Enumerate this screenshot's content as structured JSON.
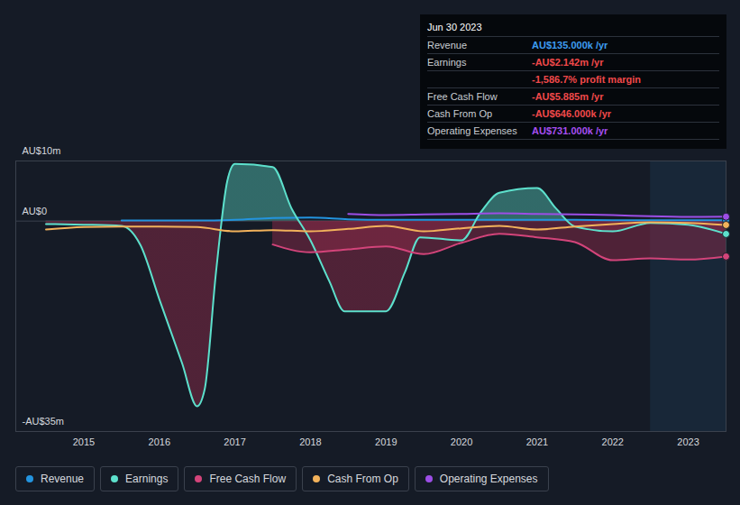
{
  "chart_data": {
    "type": "line",
    "xlim": [
      2014.1,
      2023.5
    ],
    "xticks": [
      2015,
      2016,
      2017,
      2018,
      2019,
      2020,
      2021,
      2022,
      2023
    ],
    "ylim": [
      -35,
      10
    ],
    "yticks": [
      {
        "value": 10,
        "label": "AU$10m"
      },
      {
        "value": 0,
        "label": "AU$0"
      },
      {
        "value": -35,
        "label": "-AU$35m"
      }
    ],
    "grid": true,
    "legend": "bottom",
    "shaded_region": [
      2022.5,
      2023.5
    ],
    "series": [
      {
        "name": "Revenue",
        "color": "#2394df",
        "type": "line",
        "marker": "end",
        "x": [
          2015.5,
          2016,
          2016.5,
          2017,
          2017.5,
          2018,
          2018.5,
          2019,
          2019.5,
          2020,
          2020.5,
          2021,
          2021.5,
          2022,
          2022.5,
          2023,
          2023.5
        ],
        "values": [
          0.1,
          0.1,
          0.1,
          0.2,
          0.5,
          0.6,
          0.3,
          0.2,
          0.2,
          0.2,
          0.2,
          0.2,
          0.2,
          0.15,
          0.14,
          0.13,
          0.135
        ]
      },
      {
        "name": "Earnings",
        "color": "#5de0cc",
        "type": "area",
        "marker": "end",
        "x": [
          2014.5,
          2015,
          2015.5,
          2015.75,
          2016,
          2016.3,
          2016.5,
          2016.6,
          2016.75,
          2016.9,
          2017,
          2017.5,
          2017.75,
          2018,
          2018.25,
          2018.45,
          2019,
          2019.25,
          2019.45,
          2020,
          2020.25,
          2020.5,
          2021,
          2021.25,
          2021.5,
          2022,
          2022.5,
          2023,
          2023.5
        ],
        "values": [
          -0.5,
          -0.6,
          -0.8,
          -4,
          -13,
          -23.6,
          -30.8,
          -28,
          -8.5,
          6.7,
          9.5,
          9,
          2.1,
          -3.2,
          -10,
          -15,
          -15,
          -8.5,
          -2.7,
          -3.2,
          1.4,
          4.7,
          5.5,
          2.1,
          -0.9,
          -1.7,
          -0.3,
          -0.6,
          -2.142
        ]
      },
      {
        "name": "Free Cash Flow",
        "color": "#d3447a",
        "type": "area",
        "marker": "end",
        "x": [
          2017.5,
          2018,
          2018.5,
          2019,
          2019.5,
          2020,
          2020.5,
          2021,
          2021.5,
          2022,
          2022.5,
          2023,
          2023.5
        ],
        "values": [
          -3.9,
          -5.2,
          -4.7,
          -4.2,
          -5.5,
          -3.6,
          -2.1,
          -2.7,
          -3.5,
          -6.5,
          -6.2,
          -6.4,
          -5.885
        ]
      },
      {
        "name": "Cash From Op",
        "color": "#f2b25b",
        "type": "line",
        "marker": "end",
        "x": [
          2014.5,
          2015,
          2015.5,
          2016,
          2016.5,
          2017,
          2017.5,
          2018,
          2018.5,
          2019,
          2019.5,
          2020,
          2020.5,
          2021,
          2021.5,
          2022,
          2022.5,
          2023,
          2023.5
        ],
        "values": [
          -1.4,
          -1.0,
          -0.9,
          -0.9,
          -1.0,
          -1.7,
          -1.5,
          -1.7,
          -1.3,
          -0.8,
          -1.7,
          -1.2,
          -0.8,
          -1.4,
          -0.9,
          -0.5,
          -0.2,
          -0.3,
          -0.646
        ]
      },
      {
        "name": "Operating Expenses",
        "color": "#9c4ee6",
        "type": "line",
        "marker": "end",
        "x": [
          2018.5,
          2019,
          2019.5,
          2020,
          2020.5,
          2021,
          2021.5,
          2022,
          2022.5,
          2023,
          2023.5
        ],
        "values": [
          1.2,
          1.0,
          1.1,
          1.2,
          1.3,
          1.2,
          1.1,
          1.0,
          0.8,
          0.7,
          0.731
        ]
      }
    ],
    "info_box": {
      "title": "Jun 30 2023",
      "rows": [
        {
          "label": "Revenue",
          "value": "AU$135.000k /yr",
          "color": "#3d9cf0"
        },
        {
          "label": "Earnings",
          "value": "-AU$2.142m /yr",
          "color": "#f0484a"
        },
        {
          "value": "-1,586.7% profit margin",
          "color": "#f0484a"
        },
        {
          "label": "Free Cash Flow",
          "value": "-AU$5.885m /yr",
          "color": "#f0484a"
        },
        {
          "label": "Cash From Op",
          "value": "-AU$646.000k /yr",
          "color": "#f0484a"
        },
        {
          "label": "Operating Expenses",
          "value": "AU$731.000k /yr",
          "color": "#a64ff0"
        }
      ]
    }
  }
}
